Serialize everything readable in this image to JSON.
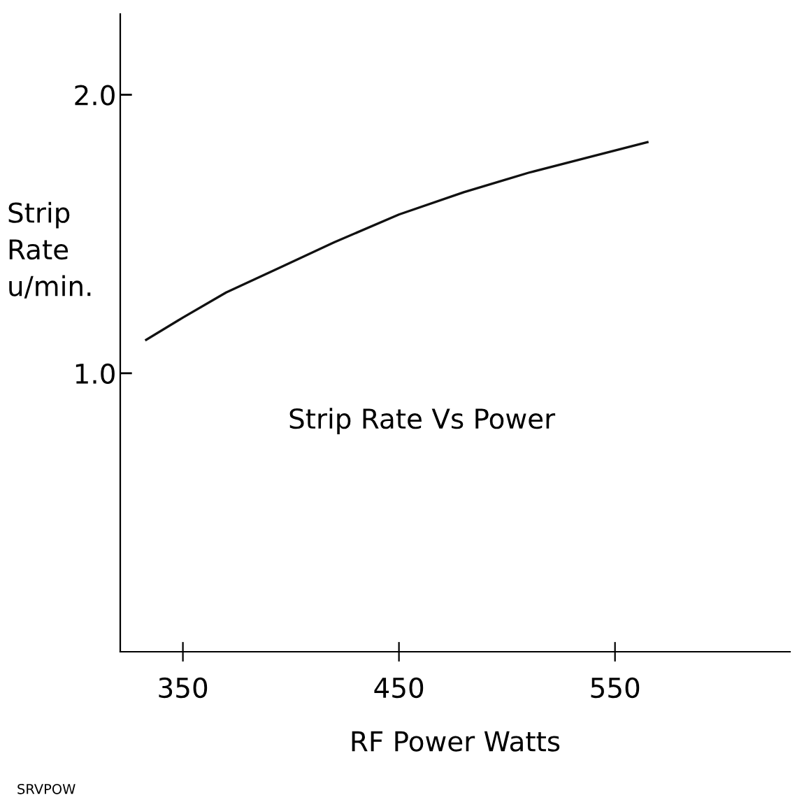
{
  "chart_data": {
    "type": "line",
    "title": "Strip Rate Vs Power",
    "xlabel": "RF Power Watts",
    "ylabel": "Strip\nRate\nu/min.",
    "annotations": [
      "SRVPOW"
    ],
    "x": [
      333,
      350,
      370,
      395,
      420,
      450,
      480,
      510,
      540,
      565
    ],
    "series": [
      {
        "color": "#111111",
        "values": [
          1.12,
          1.2,
          1.29,
          1.38,
          1.47,
          1.57,
          1.65,
          1.72,
          1.78,
          1.83
        ]
      }
    ],
    "xlim": [
      321,
      631
    ],
    "ylim": [
      0.0,
      2.29
    ],
    "xticks": [
      350,
      450,
      550
    ],
    "yticks": [
      {
        "value": 1.0,
        "label": "1.0"
      },
      {
        "value": 2.0,
        "label": "2.0"
      }
    ],
    "grid": false,
    "legend": false
  }
}
